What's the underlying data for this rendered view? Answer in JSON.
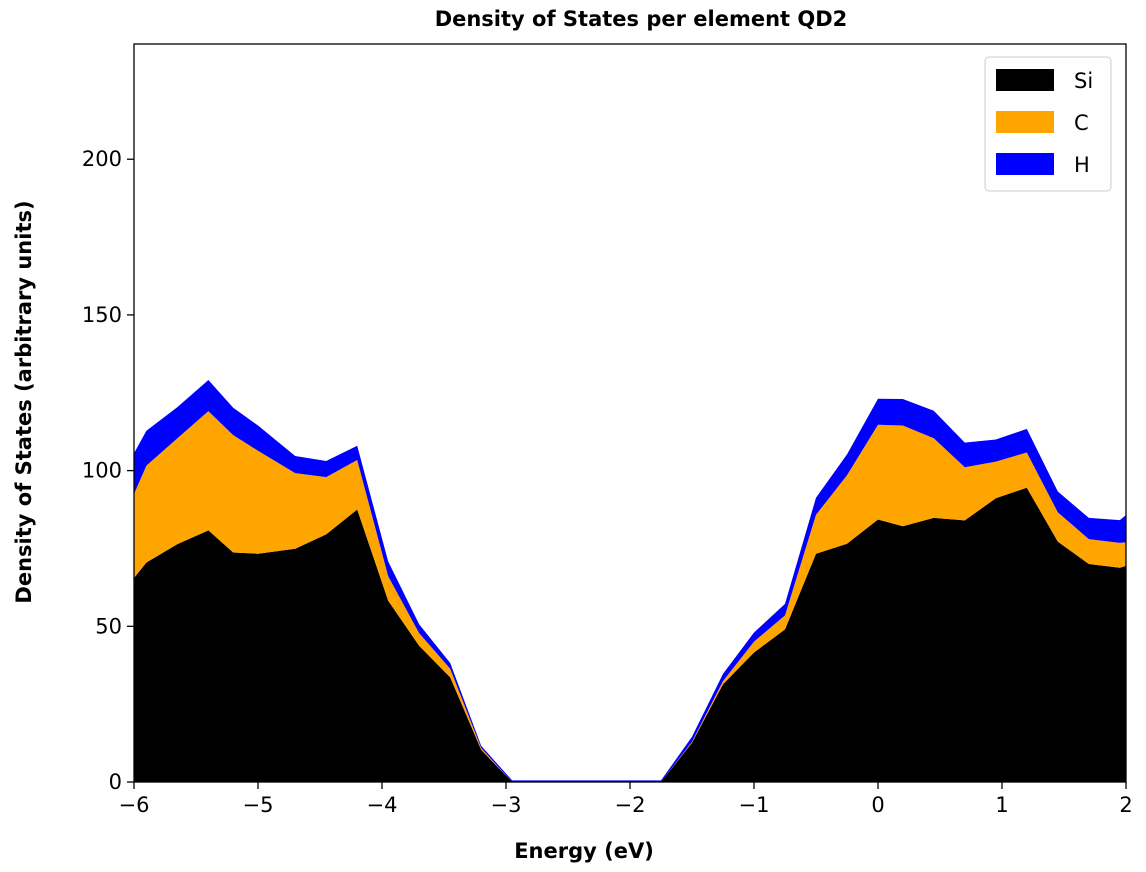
{
  "chart_data": {
    "type": "area",
    "stacked": true,
    "title": "Density of States per element QD2",
    "xlabel": "Energy (eV)",
    "ylabel": "Density of States (arbitrary units)",
    "xlim": [
      -6,
      2
    ],
    "ylim": [
      0,
      237
    ],
    "grid": false,
    "legend_position": "top-right",
    "x_ticks": [
      -6,
      -5,
      -4,
      -3,
      -2,
      -1,
      0,
      1,
      2
    ],
    "x_tick_labels": [
      "−6",
      "−5",
      "−4",
      "−3",
      "−2",
      "−1",
      "0",
      "1",
      "2"
    ],
    "y_ticks": [
      0,
      50,
      100,
      150,
      200
    ],
    "y_tick_labels": [
      "0",
      "50",
      "100",
      "150",
      "200"
    ],
    "x": [
      -6.0,
      -5.9,
      -5.65,
      -5.4,
      -5.2,
      -5.0,
      -4.7,
      -4.45,
      -4.2,
      -3.95,
      -3.7,
      -3.45,
      -3.2,
      -2.95,
      -2.5,
      -2.0,
      -1.75,
      -1.5,
      -1.25,
      -1.0,
      -0.75,
      -0.5,
      -0.25,
      0.0,
      0.2,
      0.45,
      0.7,
      0.95,
      1.2,
      1.45,
      1.7,
      1.95,
      2.0
    ],
    "series": [
      {
        "name": "Si",
        "color": "#000000",
        "values": [
          65.5,
          70.5,
          76.4,
          80.8,
          73.7,
          73.3,
          74.9,
          79.5,
          87.5,
          58.2,
          43.7,
          33.6,
          10.3,
          0,
          0,
          0,
          0,
          12.6,
          31.4,
          41.6,
          49.0,
          73.3,
          76.5,
          84.3,
          82.1,
          84.8,
          84.0,
          91.1,
          94.5,
          77.2,
          70.0,
          68.8,
          69.4
        ]
      },
      {
        "name": "C",
        "color": "#ffa500",
        "values": [
          27.0,
          31.1,
          34.0,
          38.3,
          37.7,
          33.1,
          24.3,
          18.4,
          15.9,
          7.9,
          4.1,
          2.8,
          0.6,
          0,
          0,
          0,
          0,
          0.3,
          1.0,
          3.5,
          4.5,
          12.5,
          22.0,
          30.4,
          32.4,
          25.6,
          17.1,
          11.8,
          11.3,
          9.4,
          8.0,
          8.0,
          7.6
        ]
      },
      {
        "name": "H",
        "color": "#0000ff",
        "values": [
          13.1,
          11.2,
          10.0,
          10.0,
          8.8,
          8.1,
          5.5,
          5.2,
          4.6,
          4.7,
          2.8,
          1.8,
          0.7,
          0.5,
          0.5,
          0.5,
          0.5,
          1.6,
          2.3,
          2.9,
          3.7,
          5.5,
          6.7,
          8.4,
          8.5,
          8.8,
          7.9,
          7.1,
          7.6,
          6.7,
          6.8,
          7.3,
          8.7
        ]
      }
    ]
  }
}
